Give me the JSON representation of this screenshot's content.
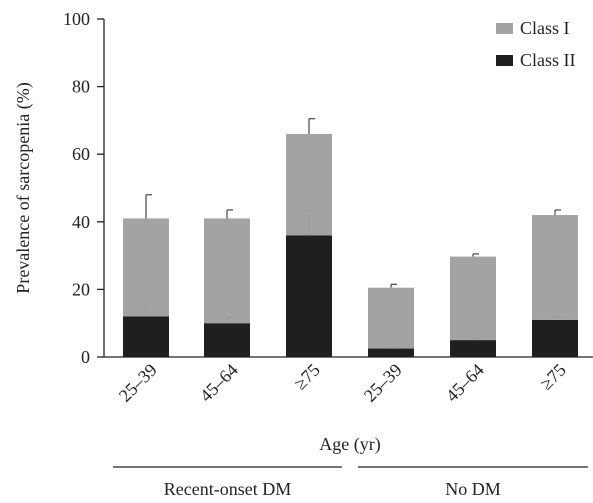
{
  "chart_data": {
    "type": "bar",
    "stacked": true,
    "xlabel": "Age (yr)",
    "ylabel": "Prevalence of sarcopenia (%)",
    "ylim": [
      0,
      100
    ],
    "yticks": [
      0,
      20,
      40,
      60,
      80,
      100
    ],
    "grid": false,
    "legend_position": "top-right",
    "categories": [
      "25–39",
      "45–64",
      "≥75",
      "25–39",
      "45–64",
      "≥75"
    ],
    "groups": [
      {
        "label": "Recent-onset DM",
        "categories": [
          0,
          1,
          2
        ]
      },
      {
        "label": "No DM",
        "categories": [
          3,
          4,
          5
        ]
      }
    ],
    "series": [
      {
        "name": "Class II",
        "color": "#1f1f1f",
        "values": [
          12,
          10,
          36,
          2.5,
          5,
          11
        ],
        "error": [
          5.5,
          1.5,
          6,
          0.5,
          0.5,
          0.8
        ]
      },
      {
        "name": "Class I",
        "color": "#a3a3a3",
        "values": [
          29,
          31,
          30,
          18,
          24.7,
          31
        ],
        "error": [
          7,
          2.5,
          4.5,
          1,
          0.8,
          1.5
        ]
      }
    ],
    "totals": [
      41,
      41,
      66,
      20.5,
      29.7,
      42
    ]
  }
}
